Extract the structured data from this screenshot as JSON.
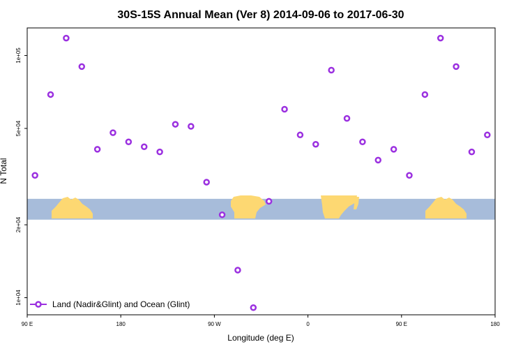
{
  "chart_data": {
    "type": "scatter",
    "title": "30S-15S Annual Mean (Ver 8)   2014-09-06 to 2017-06-30",
    "xlabel": "Longitude (deg E)",
    "ylabel": "N Total",
    "xlim": [
      90,
      540
    ],
    "ylim": [
      8500,
      130000
    ],
    "y_scale": "log",
    "x_ticks": [
      {
        "value": 90,
        "label": "90 E"
      },
      {
        "value": 180,
        "label": "180"
      },
      {
        "value": 270,
        "label": "90 W"
      },
      {
        "value": 360,
        "label": "0"
      },
      {
        "value": 450,
        "label": "90 E"
      },
      {
        "value": 540,
        "label": "180"
      }
    ],
    "y_ticks": [
      {
        "value": 10000,
        "label": "1e+04"
      },
      {
        "value": 20000,
        "label": "2e+04"
      },
      {
        "value": 50000,
        "label": "5e+04"
      },
      {
        "value": 100000,
        "label": "1e+05"
      }
    ],
    "series": [
      {
        "name": "Land (Nadir&Glint) and Ocean (Glint)",
        "color": "#9b30e0",
        "x": [
          97.5,
          112.5,
          127.5,
          142.5,
          157.5,
          172.5,
          187.5,
          202.5,
          217.5,
          232.5,
          247.5,
          262.5,
          277.5,
          292.5,
          307.5,
          322.5,
          337.5,
          352.5,
          367.5,
          382.5,
          397.5,
          412.5,
          427.5,
          442.5,
          457.5,
          472.5,
          487.5,
          502.5,
          517.5,
          532.5
        ],
        "y": [
          32000,
          69000,
          118000,
          90000,
          41000,
          48000,
          44000,
          42000,
          40000,
          52000,
          51000,
          30000,
          22000,
          13000,
          9100,
          25000,
          60000,
          47000,
          43000,
          87000,
          55000,
          44000,
          37000,
          41000,
          32000,
          69000,
          118000,
          90000,
          40000,
          47000
        ]
      }
    ],
    "map_band": {
      "y_top": 25600,
      "y_bottom": 21000,
      "ocean_color": "#a7bcda",
      "land_color": "#fdd872"
    },
    "legend_position": "bottom-left",
    "grid": false
  }
}
